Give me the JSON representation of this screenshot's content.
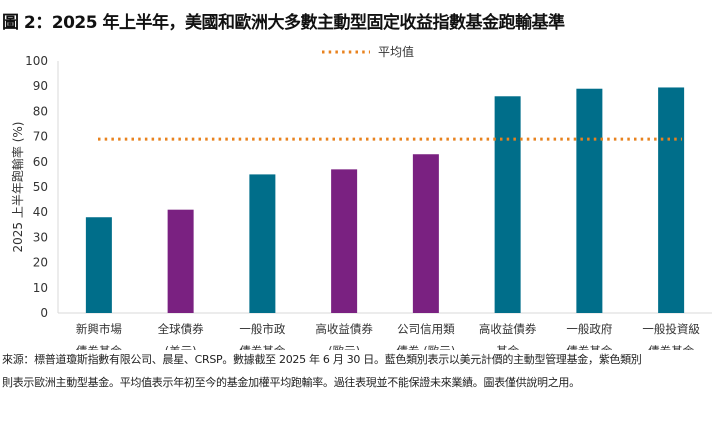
{
  "title": "圖 2：2025 年上半年，美國和歐洲大多數主動型固定收益指數基金跑輸基準",
  "chart_data": {
    "type": "bar",
    "title": "圖 2：2025 年上半年，美國和歐洲大多數主動型固定收益指數基金跑輸基準",
    "ylabel": "2025 上半年跑輸率 (%)",
    "xlabel": "",
    "ylim": [
      0,
      100
    ],
    "yticks": [
      0,
      10,
      20,
      30,
      40,
      50,
      60,
      70,
      80,
      90,
      100
    ],
    "grid": false,
    "legend": {
      "position": "top-center",
      "entries": [
        "平均值"
      ]
    },
    "categories": [
      [
        "新興市場",
        "債券基金"
      ],
      [
        "全球債券",
        "(美元)"
      ],
      [
        "一般市政",
        "債券基金"
      ],
      [
        "高收益債券",
        "(歐元)"
      ],
      [
        "公司信用類",
        "債券 (歐元)"
      ],
      [
        "高收益債券",
        "基金"
      ],
      [
        "一般政府",
        "債券基金"
      ],
      [
        "一般投資級",
        "債券基金"
      ]
    ],
    "values": [
      38,
      41,
      55,
      57,
      63,
      86,
      89,
      89.5
    ],
    "bar_colors": [
      "#006E8A",
      "#7A2181",
      "#006E8A",
      "#7A2181",
      "#7A2181",
      "#006E8A",
      "#006E8A",
      "#006E8A"
    ],
    "average": {
      "name": "平均值",
      "value": 69,
      "color": "#E8821E"
    }
  },
  "notes": [
    "來源：標普道瓊斯指數有限公司、晨星、CRSP。數據截至 2025 年 6 月 30 日。藍色類別表示以美元計價的主動型管理基金，紫色類別",
    "則表示歐洲主動型基金。平均值表示年初至今的基金加權平均跑輸率。過往表現並不能保證未來業績。圖表僅供說明之用。"
  ]
}
